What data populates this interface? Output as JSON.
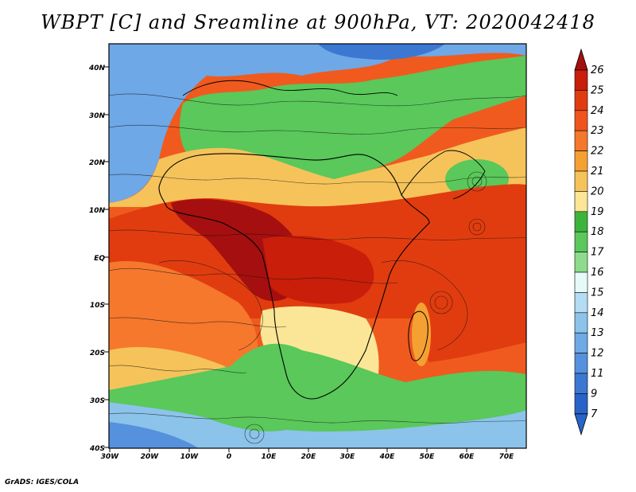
{
  "title": "WBPT [C] and Sreamline at 900hPa, VT: 2020042418",
  "credit": "GrADS: IGES/COLA",
  "map": {
    "lat_labels": [
      "40N",
      "30N",
      "20N",
      "10N",
      "EQ",
      "10S",
      "20S",
      "30S",
      "40S"
    ],
    "lon_labels": [
      "30W",
      "20W",
      "10W",
      "0",
      "10E",
      "20E",
      "30E",
      "40E",
      "50E",
      "60E",
      "70E"
    ],
    "lon_range": [
      -30,
      75
    ],
    "lat_range": [
      -40,
      45
    ]
  },
  "colorbar": {
    "levels": [
      "26",
      "25",
      "24",
      "23",
      "22",
      "21",
      "20",
      "19",
      "18",
      "17",
      "16",
      "15",
      "14",
      "13",
      "12",
      "11",
      "9",
      "7"
    ],
    "colors": [
      "#a50f0f",
      "#c81e0a",
      "#e13c0f",
      "#f0551e",
      "#f5782d",
      "#f5a032",
      "#f5c35a",
      "#fae696",
      "#3cb43c",
      "#5ac85a",
      "#8cdc8c",
      "#e6fafa",
      "#b4dcf5",
      "#8cc3eb",
      "#6eaae6",
      "#5591dc",
      "#3c78d2",
      "#2864c8"
    ]
  }
}
